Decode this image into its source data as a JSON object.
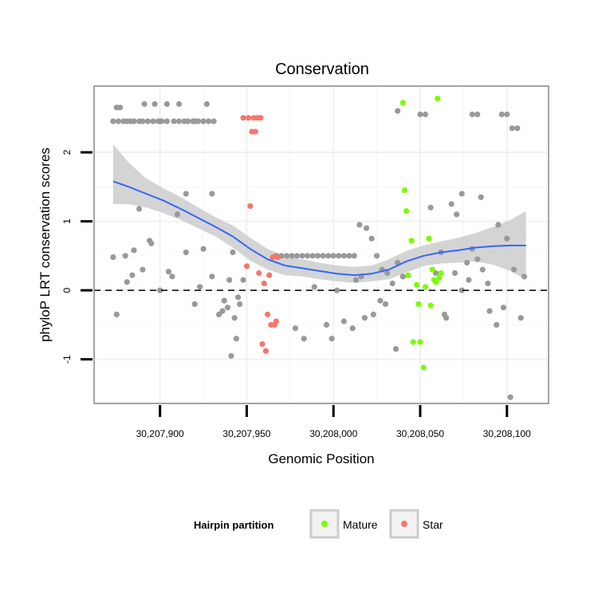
{
  "chart_data": {
    "type": "scatter",
    "title": "Conservation",
    "xlabel": "Genomic Position",
    "ylabel": "phyloP LRT conservation scores",
    "xlim": [
      30207862,
      30208124
    ],
    "ylim": [
      -1.64,
      2.96
    ],
    "x_ticks": [
      30207900,
      30207950,
      30208000,
      30208050,
      30208100
    ],
    "x_tick_labels": [
      "30,207,900",
      "30,207,950",
      "30,208,000",
      "30,208,050",
      "30,208,100"
    ],
    "y_ticks": [
      -1,
      0,
      1,
      2
    ],
    "y_tick_labels": [
      "-1",
      "0",
      "1",
      "2"
    ],
    "reference_line_y": 0,
    "legend": {
      "title": "Hairpin partition",
      "placement": "bottom",
      "entries": [
        {
          "label": "Mature",
          "color": "#7CFC00"
        },
        {
          "label": "Star",
          "color": "#F8766D"
        }
      ]
    },
    "colors": {
      "other": "#999999",
      "Mature": "#7CFC00",
      "Star": "#F8766D",
      "smooth_line": "#3366FF",
      "ribbon": "#CCCCCC"
    },
    "smooth": {
      "x": [
        30207873,
        30207882,
        30207892,
        30207902,
        30207912,
        30207922,
        30207932,
        30207942,
        30207952,
        30207962,
        30207972,
        30207982,
        30207992,
        30208002,
        30208012,
        30208022,
        30208032,
        30208042,
        30208052,
        30208062,
        30208072,
        30208082,
        30208092,
        30208102,
        30208111
      ],
      "y": [
        1.58,
        1.5,
        1.4,
        1.3,
        1.18,
        1.05,
        0.92,
        0.78,
        0.6,
        0.45,
        0.36,
        0.32,
        0.28,
        0.24,
        0.22,
        0.24,
        0.3,
        0.42,
        0.5,
        0.55,
        0.58,
        0.62,
        0.64,
        0.65,
        0.65
      ],
      "lower": [
        1.25,
        1.25,
        1.2,
        1.12,
        1.02,
        0.9,
        0.78,
        0.62,
        0.43,
        0.3,
        0.22,
        0.2,
        0.16,
        0.13,
        0.11,
        0.13,
        0.16,
        0.26,
        0.35,
        0.39,
        0.4,
        0.42,
        0.37,
        0.28,
        0.15
      ],
      "upper": [
        2.12,
        1.85,
        1.62,
        1.48,
        1.35,
        1.2,
        1.06,
        0.94,
        0.76,
        0.6,
        0.5,
        0.45,
        0.4,
        0.36,
        0.34,
        0.36,
        0.45,
        0.57,
        0.65,
        0.71,
        0.76,
        0.83,
        0.92,
        1.02,
        1.15
      ]
    },
    "series": [
      {
        "name": "Other",
        "color": "#999999",
        "x": [
          30207873,
          30207875,
          30207877,
          30207881,
          30207884,
          30207888,
          30207891,
          30207894,
          30207897,
          30207900,
          30207904,
          30207907,
          30207911,
          30207915,
          30207920,
          30207923,
          30207927,
          30207930,
          30207875,
          30207880,
          30207885,
          30207890,
          30207895,
          30207900,
          30207905,
          30207910,
          30207915,
          30207920,
          30207925,
          30207930,
          30207873,
          30207876,
          30207879,
          30207881,
          30207883,
          30207885,
          30207888,
          30207890,
          30207893,
          30207896,
          30207899,
          30207901,
          30207904,
          30207908,
          30207911,
          30207914,
          30207916,
          30207919,
          30207922,
          30207925,
          30207928,
          30207931,
          30207934,
          30207937,
          30207940,
          30207942,
          30207944,
          30207946,
          30207948,
          30207936,
          30207939,
          30207941,
          30207943,
          30207945,
          30207967,
          30207970,
          30207973,
          30207976,
          30207979,
          30207982,
          30207985,
          30207988,
          30207991,
          30207994,
          30207997,
          30208000,
          30208003,
          30208006,
          30208009,
          30208012,
          30207978,
          30207983,
          30207989,
          30207996,
          30207999,
          30208002,
          30208006,
          30208011,
          30208013,
          30208016,
          30208019,
          30208022,
          30208025,
          30208028,
          30208031,
          30208034,
          30208037,
          30208040,
          30208015,
          30208018,
          30208023,
          30208027,
          30208030,
          30208036,
          30208037,
          30208040,
          30208050,
          30208053,
          30208056,
          30208059,
          30208062,
          30208065,
          30208068,
          30208071,
          30208074,
          30208077,
          30208080,
          30208083,
          30208086,
          30208089,
          30208080,
          30208083,
          30208097,
          30208100,
          30208103,
          30208106,
          30208064,
          30208070,
          30208074,
          30208078,
          30208085,
          30208090,
          30208095,
          30208100,
          30208104,
          30208108,
          30208110,
          30208094,
          30208098,
          30208102
        ],
        "y": [
          0.48,
          2.65,
          2.65,
          0.12,
          0.22,
          1.18,
          2.7,
          0.72,
          2.7,
          2.45,
          2.7,
          0.2,
          2.7,
          1.4,
          2.45,
          0.05,
          2.7,
          1.4,
          -0.35,
          0.5,
          0.58,
          0.3,
          0.68,
          0.0,
          0.27,
          1.1,
          0.55,
          -0.2,
          0.6,
          0.2,
          2.45,
          2.45,
          2.45,
          2.45,
          2.45,
          2.45,
          2.45,
          2.45,
          2.45,
          2.45,
          2.45,
          2.45,
          2.45,
          2.45,
          2.45,
          2.45,
          2.45,
          2.45,
          2.45,
          2.45,
          2.45,
          2.45,
          -0.35,
          -0.15,
          0.15,
          0.55,
          -0.7,
          -0.2,
          0.15,
          -0.3,
          -0.25,
          -0.95,
          -0.4,
          -0.1,
          0.5,
          0.5,
          0.5,
          0.5,
          0.5,
          0.5,
          0.5,
          0.5,
          0.5,
          0.5,
          0.5,
          0.5,
          0.5,
          0.5,
          0.5,
          0.5,
          -0.55,
          -0.7,
          0.05,
          -0.5,
          -0.7,
          0.0,
          -0.45,
          -0.55,
          0.15,
          0.2,
          0.9,
          0.75,
          0.5,
          0.3,
          0.25,
          0.1,
          0.4,
          0.2,
          0.95,
          -0.4,
          -0.35,
          -0.15,
          -0.2,
          -0.85,
          2.6,
          0.2,
          2.55,
          2.55,
          1.2,
          0.25,
          0.55,
          -0.4,
          1.25,
          1.1,
          1.4,
          0.4,
          0.6,
          0.45,
          0.3,
          0.1,
          2.55,
          2.55,
          2.55,
          2.55,
          2.35,
          2.35,
          -0.35,
          0.25,
          0.0,
          0.15,
          1.35,
          -0.3,
          0.95,
          0.75,
          0.3,
          -0.4,
          0.2,
          -0.5,
          -0.25,
          -1.55
        ],
        "labelled": "none"
      },
      {
        "name": "Mature",
        "color": "#7CFC00",
        "x": [
          30208040,
          30208041,
          30208042,
          30208043,
          30208045,
          30208046,
          30208048,
          30208049,
          30208050,
          30208052,
          30208053,
          30208055,
          30208056,
          30208057,
          30208058,
          30208059,
          30208060,
          30208061,
          30208062
        ],
        "y": [
          2.72,
          1.45,
          1.15,
          0.22,
          0.72,
          -0.75,
          0.08,
          -0.2,
          -0.75,
          -1.12,
          0.05,
          0.75,
          -0.22,
          0.3,
          0.15,
          0.12,
          2.78,
          0.18,
          0.25
        ]
      },
      {
        "name": "Star",
        "color": "#F8766D",
        "x": [
          30207948,
          30207950,
          30207951,
          30207952,
          30207953,
          30207954,
          30207955,
          30207956,
          30207957,
          30207958,
          30207959,
          30207960,
          30207961,
          30207962,
          30207963,
          30207964,
          30207965,
          30207966,
          30207967,
          30207968
        ],
        "y": [
          2.5,
          0.35,
          2.5,
          1.22,
          2.3,
          2.5,
          2.3,
          2.5,
          0.25,
          2.5,
          -0.78,
          0.1,
          -0.88,
          -0.35,
          0.22,
          -0.5,
          0.48,
          -0.5,
          -0.45,
          0.48
        ]
      }
    ]
  }
}
